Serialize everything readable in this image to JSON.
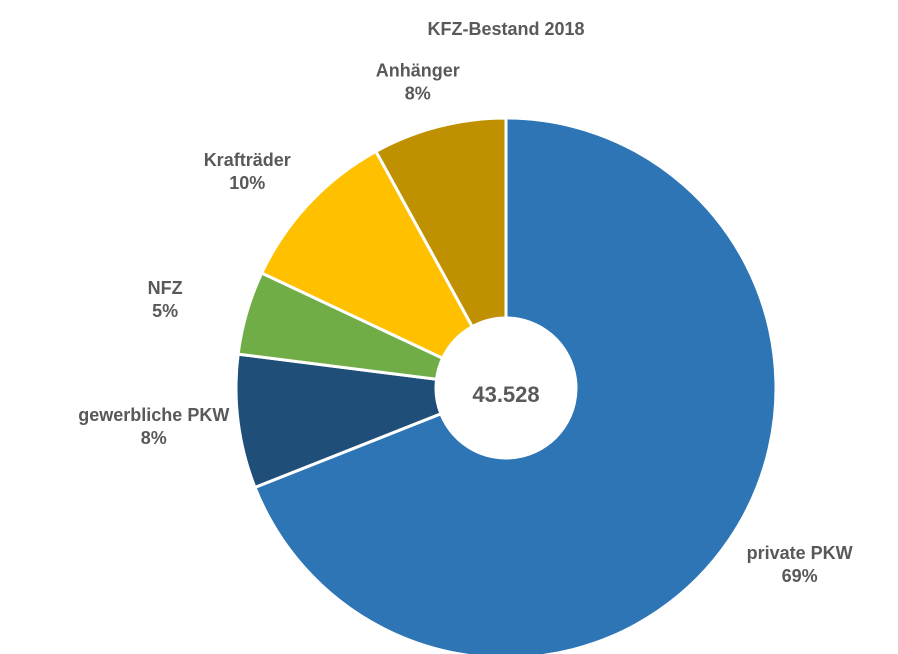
{
  "chart_data": {
    "type": "donut",
    "title": "KFZ-Bestand 2018",
    "center_label": "43.528",
    "categories": [
      "private PKW",
      "gewerbliche PKW",
      "NFZ",
      "Krafträder",
      "Anhänger"
    ],
    "values": [
      69,
      8,
      5,
      10,
      8
    ],
    "value_labels": [
      "69%",
      "8%",
      "5%",
      "10%",
      "8%"
    ],
    "colors": [
      "#2e75b6",
      "#1f4e79",
      "#70ad47",
      "#ffc000",
      "#bf9000"
    ]
  }
}
